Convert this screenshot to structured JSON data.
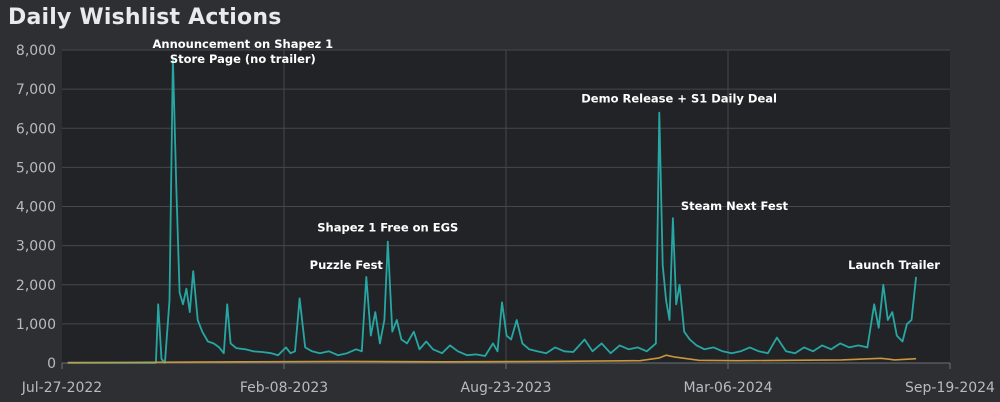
{
  "chart_data": {
    "type": "line",
    "title": "Daily Wishlist Actions",
    "xlabel": "",
    "ylabel": "",
    "x_ticks": [
      "Jul-27-2022",
      "Feb-08-2023",
      "Aug-23-2023",
      "Mar-06-2024",
      "Sep-19-2024"
    ],
    "y_ticks": [
      "0",
      "1,000",
      "2,000",
      "3,000",
      "4,000",
      "5,000",
      "6,000",
      "7,000",
      "8,000"
    ],
    "xlim": [
      "2022-07-27",
      "2024-09-19"
    ],
    "ylim": [
      0,
      8000
    ],
    "grid": true,
    "series": [
      {
        "color": "#27a7a3",
        "points": [
          [
            "2022-08-01",
            0
          ],
          [
            "2022-10-01",
            0
          ],
          [
            "2022-10-18",
            0
          ],
          [
            "2022-10-20",
            1500
          ],
          [
            "2022-10-23",
            100
          ],
          [
            "2022-10-26",
            0
          ],
          [
            "2022-10-30",
            1600
          ],
          [
            "2022-11-02",
            7800
          ],
          [
            "2022-11-05",
            4500
          ],
          [
            "2022-11-08",
            1800
          ],
          [
            "2022-11-11",
            1500
          ],
          [
            "2022-11-14",
            1900
          ],
          [
            "2022-11-17",
            1300
          ],
          [
            "2022-11-20",
            2350
          ],
          [
            "2022-11-24",
            1100
          ],
          [
            "2022-11-28",
            800
          ],
          [
            "2022-12-03",
            550
          ],
          [
            "2022-12-08",
            500
          ],
          [
            "2022-12-13",
            400
          ],
          [
            "2022-12-17",
            250
          ],
          [
            "2022-12-20",
            1500
          ],
          [
            "2022-12-23",
            500
          ],
          [
            "2022-12-28",
            380
          ],
          [
            "2023-01-05",
            350
          ],
          [
            "2023-01-12",
            300
          ],
          [
            "2023-01-20",
            280
          ],
          [
            "2023-01-28",
            250
          ],
          [
            "2023-02-03",
            200
          ],
          [
            "2023-02-10",
            400
          ],
          [
            "2023-02-14",
            250
          ],
          [
            "2023-02-18",
            300
          ],
          [
            "2023-02-22",
            1650
          ],
          [
            "2023-02-27",
            400
          ],
          [
            "2023-03-05",
            300
          ],
          [
            "2023-03-12",
            250
          ],
          [
            "2023-03-20",
            300
          ],
          [
            "2023-03-28",
            200
          ],
          [
            "2023-04-05",
            250
          ],
          [
            "2023-04-13",
            350
          ],
          [
            "2023-04-18",
            300
          ],
          [
            "2023-04-22",
            2200
          ],
          [
            "2023-04-26",
            700
          ],
          [
            "2023-04-30",
            1300
          ],
          [
            "2023-05-04",
            500
          ],
          [
            "2023-05-08",
            1100
          ],
          [
            "2023-05-11",
            3100
          ],
          [
            "2023-05-15",
            800
          ],
          [
            "2023-05-19",
            1100
          ],
          [
            "2023-05-23",
            600
          ],
          [
            "2023-05-28",
            500
          ],
          [
            "2023-06-03",
            800
          ],
          [
            "2023-06-08",
            350
          ],
          [
            "2023-06-14",
            550
          ],
          [
            "2023-06-20",
            350
          ],
          [
            "2023-06-28",
            250
          ],
          [
            "2023-07-05",
            450
          ],
          [
            "2023-07-12",
            300
          ],
          [
            "2023-07-20",
            200
          ],
          [
            "2023-07-28",
            220
          ],
          [
            "2023-08-05",
            180
          ],
          [
            "2023-08-12",
            500
          ],
          [
            "2023-08-16",
            300
          ],
          [
            "2023-08-20",
            1550
          ],
          [
            "2023-08-24",
            700
          ],
          [
            "2023-08-28",
            600
          ],
          [
            "2023-09-02",
            1100
          ],
          [
            "2023-09-07",
            500
          ],
          [
            "2023-09-13",
            350
          ],
          [
            "2023-09-20",
            300
          ],
          [
            "2023-09-28",
            250
          ],
          [
            "2023-10-06",
            400
          ],
          [
            "2023-10-14",
            300
          ],
          [
            "2023-10-22",
            280
          ],
          [
            "2023-11-01",
            600
          ],
          [
            "2023-11-08",
            300
          ],
          [
            "2023-11-16",
            500
          ],
          [
            "2023-11-24",
            250
          ],
          [
            "2023-12-02",
            450
          ],
          [
            "2023-12-10",
            350
          ],
          [
            "2023-12-18",
            400
          ],
          [
            "2023-12-26",
            300
          ],
          [
            "2024-01-03",
            500
          ],
          [
            "2024-01-06",
            6400
          ],
          [
            "2024-01-09",
            2500
          ],
          [
            "2024-01-12",
            1600
          ],
          [
            "2024-01-15",
            1100
          ],
          [
            "2024-01-18",
            3700
          ],
          [
            "2024-01-21",
            1500
          ],
          [
            "2024-01-24",
            2000
          ],
          [
            "2024-01-28",
            800
          ],
          [
            "2024-02-02",
            600
          ],
          [
            "2024-02-08",
            450
          ],
          [
            "2024-02-15",
            350
          ],
          [
            "2024-02-23",
            400
          ],
          [
            "2024-03-02",
            300
          ],
          [
            "2024-03-10",
            250
          ],
          [
            "2024-03-18",
            300
          ],
          [
            "2024-03-26",
            400
          ],
          [
            "2024-04-03",
            300
          ],
          [
            "2024-04-11",
            250
          ],
          [
            "2024-04-19",
            650
          ],
          [
            "2024-04-27",
            300
          ],
          [
            "2024-05-05",
            250
          ],
          [
            "2024-05-13",
            400
          ],
          [
            "2024-05-21",
            300
          ],
          [
            "2024-05-29",
            450
          ],
          [
            "2024-06-06",
            350
          ],
          [
            "2024-06-14",
            500
          ],
          [
            "2024-06-22",
            400
          ],
          [
            "2024-06-30",
            450
          ],
          [
            "2024-07-08",
            400
          ],
          [
            "2024-07-14",
            1500
          ],
          [
            "2024-07-18",
            900
          ],
          [
            "2024-07-22",
            2000
          ],
          [
            "2024-07-26",
            1100
          ],
          [
            "2024-07-30",
            1300
          ],
          [
            "2024-08-03",
            700
          ],
          [
            "2024-08-08",
            550
          ],
          [
            "2024-08-12",
            1000
          ],
          [
            "2024-08-16",
            1100
          ],
          [
            "2024-08-20",
            2200
          ]
        ]
      },
      {
        "color": "#c8963c",
        "points": [
          [
            "2022-08-01",
            10
          ],
          [
            "2022-11-01",
            20
          ],
          [
            "2023-01-01",
            30
          ],
          [
            "2023-04-01",
            40
          ],
          [
            "2023-07-01",
            30
          ],
          [
            "2023-10-01",
            40
          ],
          [
            "2023-12-20",
            60
          ],
          [
            "2024-01-06",
            130
          ],
          [
            "2024-01-12",
            200
          ],
          [
            "2024-01-20",
            150
          ],
          [
            "2024-02-10",
            70
          ],
          [
            "2024-03-15",
            60
          ],
          [
            "2024-05-01",
            70
          ],
          [
            "2024-06-15",
            80
          ],
          [
            "2024-07-20",
            120
          ],
          [
            "2024-08-01",
            80
          ],
          [
            "2024-08-20",
            110
          ]
        ]
      }
    ],
    "annotations": [
      {
        "lines": [
          "Announcement on Shapez 1",
          "Store Page (no trailer)"
        ],
        "x": "2022-11-02",
        "y": 7800
      },
      {
        "lines": [
          "Puzzle Fest"
        ],
        "x": "2023-04-22",
        "y": 2200
      },
      {
        "lines": [
          "Shapez 1 Free on EGS"
        ],
        "x": "2023-05-11",
        "y": 3100
      },
      {
        "lines": [
          "Demo Release + S1 Daily Deal"
        ],
        "x": "2024-01-06",
        "y": 6400
      },
      {
        "lines": [
          "Steam Next Fest"
        ],
        "x": "2024-01-18",
        "y": 3700
      },
      {
        "lines": [
          "Launch Trailer"
        ],
        "x": "2024-08-20",
        "y": 2200
      }
    ]
  }
}
